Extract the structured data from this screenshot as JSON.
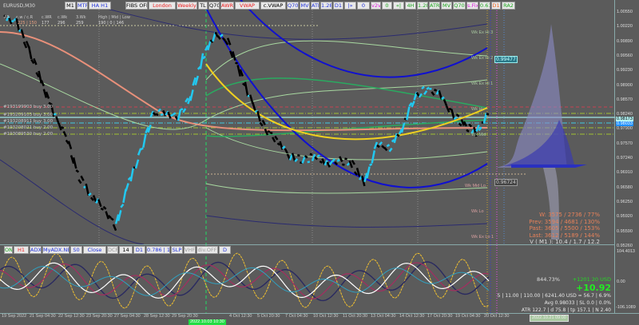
{
  "symbol": "EURUSD,M30",
  "toolbar": [
    {
      "label": "M1",
      "color": "#000"
    },
    {
      "label": "MTF",
      "color": "#2233dd"
    },
    {
      "label": "HA H1",
      "color": "#2233dd"
    },
    {
      "label": "FIBS OFF",
      "color": "#000"
    },
    {
      "label": "London",
      "color": "#ee2222"
    },
    {
      "label": "Weekly",
      "color": "#ee2222"
    },
    {
      "label": "TL",
      "color": "#000"
    },
    {
      "label": "Q70",
      "color": "#000"
    },
    {
      "label": "AWR",
      "color": "#ee2222"
    },
    {
      "label": "VWAP",
      "color": "#ee2222"
    },
    {
      "label": "c.VWAP",
      "color": "#000"
    },
    {
      "label": "Q70",
      "color": "#2233dd"
    },
    {
      "label": "MV",
      "color": "#2233dd"
    },
    {
      "label": "ATR",
      "color": "#2233dd"
    },
    {
      "label": "1.28",
      "color": "#2233dd"
    },
    {
      "label": "D1",
      "color": "#2233dd"
    },
    {
      "label": "|»",
      "color": "#2233dd"
    },
    {
      "label": "0",
      "color": "#2233dd"
    },
    {
      "label": "v2v",
      "color": "#dd22dd"
    },
    {
      "label": "0",
      "color": "#22aa22"
    },
    {
      "label": "«|",
      "color": "#22aa22"
    },
    {
      "label": "4H",
      "color": "#22aa22"
    },
    {
      "label": "1.28",
      "color": "#22aa22"
    },
    {
      "label": "ATR",
      "color": "#22aa22"
    },
    {
      "label": "MV",
      "color": "#22aa22"
    },
    {
      "label": "Q70",
      "color": "#22aa22"
    },
    {
      "label": "s.Fix",
      "color": "#dd22dd"
    },
    {
      "label": "0.61",
      "color": "#22aa22"
    },
    {
      "label": "D1",
      "color": "#ee6622"
    },
    {
      "label": "RA2",
      "color": "#22aa22"
    }
  ],
  "info": {
    "labels": [
      "AR",
      "c.w / c.R",
      "c.WR",
      "c.Wk",
      "3.Wk",
      "High | Mid | Low"
    ],
    "values": [
      "225 | 150",
      "177",
      "296",
      "259",
      "190 | 0 | 146"
    ]
  },
  "orders": [
    "#193199903 buy 3.00",
    "#193209103 buy 3.00",
    "#193208911 buy 3.00",
    "#193208021 buy 2.00",
    "#193089530 buy 2.00"
  ],
  "levels": [
    "Wk Ex Hi 3",
    "Wk Ex Hi 2",
    "Wk Ex Hi 1",
    "Wk Hi",
    "Wk Mid",
    "Wk Mid Lo",
    "Wk Lo",
    "Wk Ex Lo 1"
  ],
  "level_prices": {
    "upper": "0.99477",
    "lower": "0.96724"
  },
  "price_axis": [
    "1.00550",
    "1.00220",
    "0.99890",
    "0.99560",
    "0.99230",
    "0.98900",
    "0.98570",
    "0.98240",
    "0.97900",
    "0.97570",
    "0.97240",
    "0.96910",
    "0.96580",
    "0.96250",
    "0.95920",
    "0.95590",
    "0.95260"
  ],
  "bid": "0.98173",
  "ask": "0.98033",
  "stats": [
    "W: 3575 / 2736 / 77%",
    "Prev: 3594 / 4681 / 130%",
    "Past: 3605 / 5500 / 153%",
    "Last: 3612 / 5189 / 144%",
    "V ( M1 ): 10.4 / 1.7 / 12.2"
  ],
  "account": {
    "pct": "844.73%",
    "profit": "+1201.20 USD",
    "pips": "+10.92",
    "line1": "5 | 11.00 | 110.00 | 6241.40 USD = 56.7 | 6.9%",
    "line2": "Avg 0.98033 | SL 0.0 | 0.0%",
    "line3": "ATR 122.7 | d 75.8 | tp 157.1 | N 2.40"
  },
  "panel_toolbar": [
    {
      "label": "ON",
      "color": "#22aa22"
    },
    {
      "label": "H1",
      "color": "#ee2222"
    },
    {
      "label": "ADX",
      "color": "#2233dd"
    },
    {
      "label": "MyADX.NET",
      "color": "#2233dd"
    },
    {
      "label": "S0",
      "color": "#2233dd"
    },
    {
      "label": "Close",
      "color": "#2233dd"
    },
    {
      "label": "DCP",
      "color": "#999"
    },
    {
      "label": "14",
      "color": "#000"
    },
    {
      "label": "D1",
      "color": "#2233dd"
    },
    {
      "label": "0.786 | 15",
      "color": "#2233dd"
    },
    {
      "label": "SLP",
      "color": "#2233dd"
    },
    {
      "label": "VHF",
      "color": "#999"
    },
    {
      "label": "div.OFF",
      "color": "#999"
    },
    {
      "label": "D",
      "color": "#2233dd"
    }
  ],
  "panel_axis": [
    "104.4013",
    "0.00",
    "-106.1089"
  ],
  "time_axis": [
    "19 Sep 2022",
    "21 Sep 04:30",
    "22 Sep 12:30",
    "23 Sep 20:30",
    "27 Sep 04:30",
    "28 Sep 12:30",
    "29 Sep 20:30",
    "4 Oct 12:30",
    "5 Oct 20:30",
    "7 Oct 04:30",
    "10 Oct 12:30",
    "11 Oct 20:30",
    "13 Oct 04:30",
    "14 Oct 12:30",
    "17 Oct 20:30",
    "19 Oct 04:30",
    "20 Oct 12:30"
  ],
  "time_markers": [
    "2022.10.03 10:30",
    "2022.10.21 09:00"
  ],
  "chart_data": {
    "type": "line",
    "symbol": "EURUSD",
    "timeframe": "M30",
    "closes": [
      1.0029,
      1.002,
      0.9956,
      0.9884,
      0.9811,
      0.9757,
      0.9667,
      0.9622,
      0.9595,
      0.955,
      0.9649,
      0.9721,
      0.9811,
      0.9811,
      0.9802,
      0.9847,
      0.9939,
      0.9993,
      0.9975,
      0.9902,
      0.983,
      0.9775,
      0.9748,
      0.9712,
      0.9703,
      0.9712,
      0.9694,
      0.9703,
      0.9694,
      0.9649,
      0.9739,
      0.973,
      0.9775,
      0.9847,
      0.9866,
      0.9857,
      0.9811,
      0.9784,
      0.9766,
      0.9811
    ],
    "ylim": [
      0.951,
      1.007
    ],
    "colors": {
      "up": "#22c8f0",
      "down": "#000000",
      "ma": "#e8907a",
      "parabola": "#f0d020",
      "band": "#1010d0"
    }
  }
}
